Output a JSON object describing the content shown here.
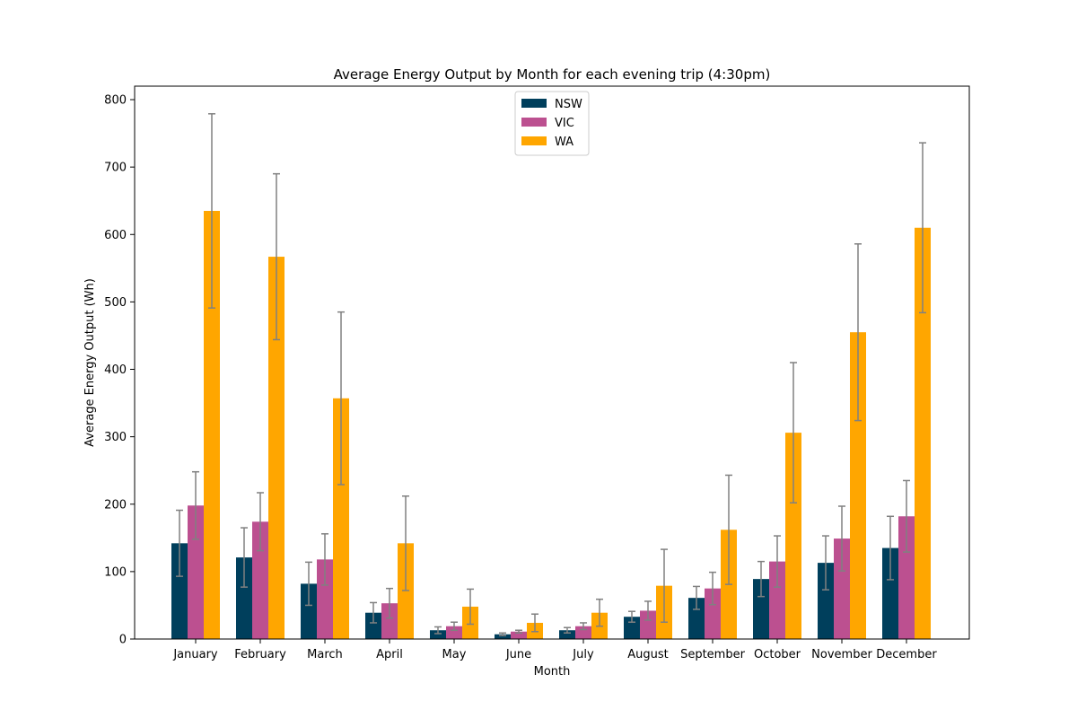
{
  "chart_data": {
    "type": "bar",
    "title": "Average Energy Output by Month for each evening trip (4:30pm)",
    "xlabel": "Month",
    "ylabel": "Average Energy Output (Wh)",
    "ylim": [
      0,
      820
    ],
    "yticks": [
      0,
      100,
      200,
      300,
      400,
      500,
      600,
      700,
      800
    ],
    "grid": false,
    "legend_position": "top-center",
    "error_bar_color": "#808080",
    "categories": [
      "January",
      "February",
      "March",
      "April",
      "May",
      "June",
      "July",
      "August",
      "September",
      "October",
      "November",
      "December"
    ],
    "series": [
      {
        "name": "NSW",
        "color": "#003f5c",
        "values": [
          142,
          121,
          82,
          39,
          13,
          7,
          13,
          33,
          61,
          89,
          113,
          135
        ],
        "error": [
          49,
          44,
          32,
          15,
          5,
          2,
          4,
          8,
          17,
          26,
          40,
          47
        ]
      },
      {
        "name": "VIC",
        "color": "#bc5090",
        "values": [
          198,
          174,
          118,
          53,
          19,
          11,
          19,
          42,
          75,
          115,
          149,
          182
        ],
        "error": [
          50,
          43,
          38,
          22,
          6,
          2,
          5,
          14,
          24,
          38,
          48,
          53
        ]
      },
      {
        "name": "WA",
        "color": "#ffa600",
        "values": [
          635,
          567,
          357,
          142,
          48,
          24,
          39,
          79,
          162,
          306,
          455,
          610
        ],
        "error": [
          144,
          123,
          128,
          70,
          26,
          13,
          20,
          54,
          81,
          104,
          131,
          126
        ]
      }
    ]
  }
}
